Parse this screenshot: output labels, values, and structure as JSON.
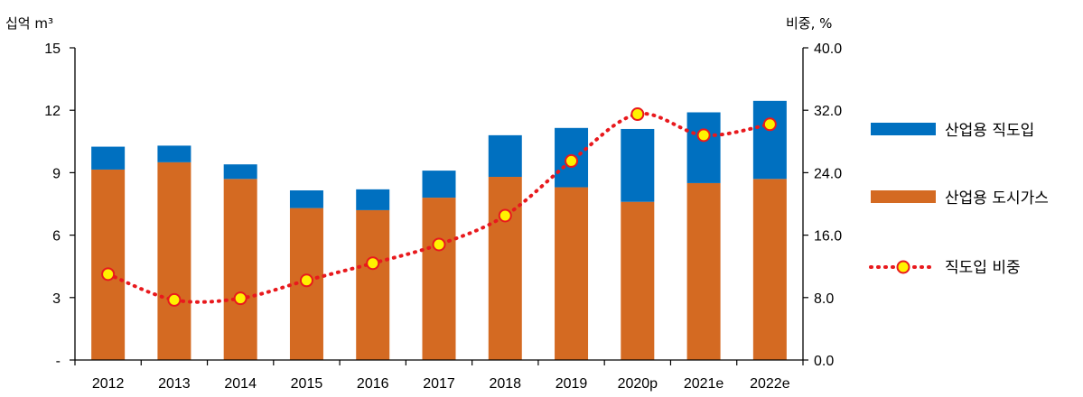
{
  "chart_data": {
    "type": "bar",
    "categories": [
      "2012",
      "2013",
      "2014",
      "2015",
      "2016",
      "2017",
      "2018",
      "2019",
      "2020p",
      "2021e",
      "2022e"
    ],
    "series": [
      {
        "name": "산업용 도시가스",
        "type": "bar",
        "axis": "left",
        "values": [
          9.15,
          9.5,
          8.7,
          7.3,
          7.2,
          7.8,
          8.8,
          8.3,
          7.6,
          8.5,
          8.7
        ]
      },
      {
        "name": "산업용 직도입",
        "type": "bar",
        "axis": "left",
        "values": [
          1.1,
          0.8,
          0.7,
          0.85,
          1.0,
          1.3,
          2.0,
          2.85,
          3.5,
          3.4,
          3.75
        ]
      },
      {
        "name": "직도입 비중",
        "type": "line",
        "axis": "right",
        "values": [
          11.0,
          7.7,
          7.9,
          10.2,
          12.4,
          14.8,
          18.5,
          25.5,
          31.5,
          28.8,
          30.2
        ]
      }
    ],
    "y_left": {
      "unit": "십억 m³",
      "ticks": [
        "15",
        "12",
        "9",
        "6",
        "3",
        "-"
      ],
      "ylim": [
        0,
        15
      ]
    },
    "y_right": {
      "unit": "비중, %",
      "ticks": [
        "40.0",
        "32.0",
        "24.0",
        "16.0",
        "8.0",
        "0.0"
      ],
      "ylim": [
        0,
        40
      ]
    },
    "legend": {
      "placement": "right",
      "items": [
        {
          "label": "산업용 직도입",
          "kind": "bar",
          "color": "#0070C0"
        },
        {
          "label": "산업용 도시가스",
          "kind": "bar",
          "color": "#D46A22"
        },
        {
          "label": "직도입 비중",
          "kind": "line",
          "color": "#E8191D",
          "marker_fill": "#FFF200"
        }
      ]
    },
    "colors": {
      "city_gas": "#D46A22",
      "direct": "#0070C0",
      "line": "#E8191D",
      "marker_fill": "#FFF200"
    },
    "grid": false
  }
}
